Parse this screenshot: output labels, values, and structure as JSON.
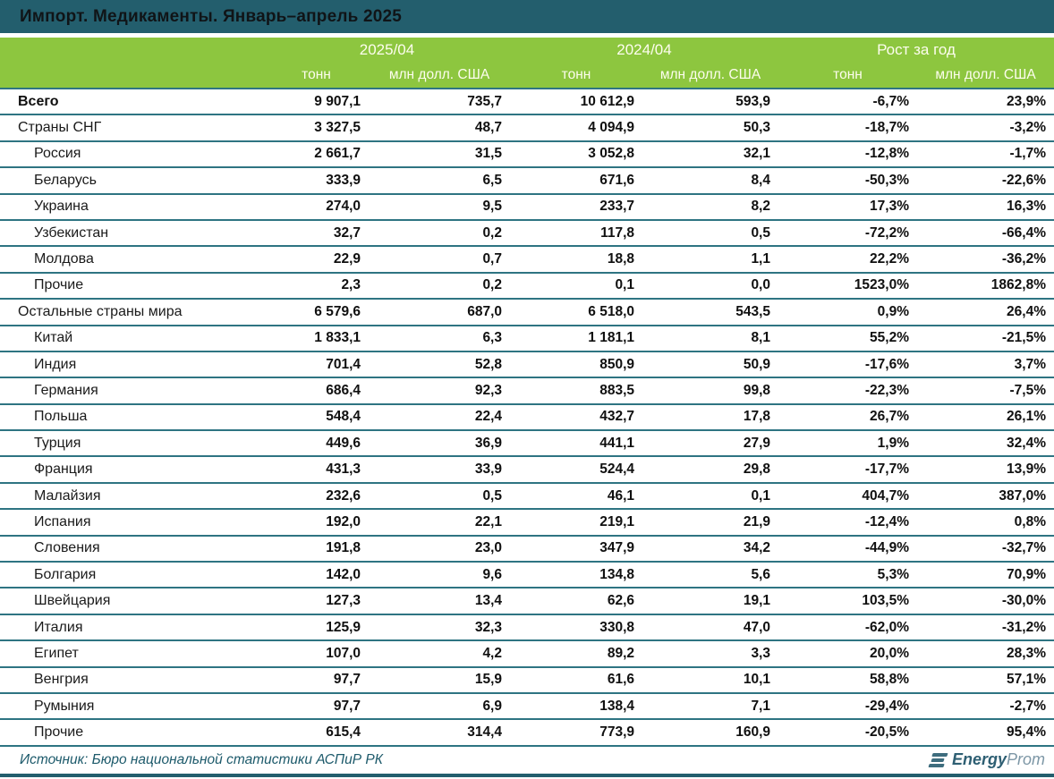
{
  "title": "Импорт. Медикаменты. Январь–апрель 2025",
  "chart_data": {
    "type": "table",
    "title": "Импорт. Медикаменты. Январь–апрель 2025",
    "column_groups": [
      "2025/04",
      "2024/04",
      "Рост за год"
    ],
    "columns": [
      "тонн",
      "млн долл. США",
      "тонн",
      "млн долл. США",
      "тонн",
      "млн долл. США"
    ],
    "rows": [
      {
        "name": "Всего",
        "level": "total",
        "values": [
          "9 907,1",
          "735,7",
          "10 612,9",
          "593,9",
          "-6,7%",
          "23,9%"
        ]
      },
      {
        "name": "Страны СНГ",
        "level": "group",
        "values": [
          "3 327,5",
          "48,7",
          "4 094,9",
          "50,3",
          "-18,7%",
          "-3,2%"
        ]
      },
      {
        "name": "Россия",
        "level": "country",
        "values": [
          "2 661,7",
          "31,5",
          "3 052,8",
          "32,1",
          "-12,8%",
          "-1,7%"
        ]
      },
      {
        "name": "Беларусь",
        "level": "country",
        "values": [
          "333,9",
          "6,5",
          "671,6",
          "8,4",
          "-50,3%",
          "-22,6%"
        ]
      },
      {
        "name": "Украина",
        "level": "country",
        "values": [
          "274,0",
          "9,5",
          "233,7",
          "8,2",
          "17,3%",
          "16,3%"
        ]
      },
      {
        "name": "Узбекистан",
        "level": "country",
        "values": [
          "32,7",
          "0,2",
          "117,8",
          "0,5",
          "-72,2%",
          "-66,4%"
        ]
      },
      {
        "name": "Молдова",
        "level": "country",
        "values": [
          "22,9",
          "0,7",
          "18,8",
          "1,1",
          "22,2%",
          "-36,2%"
        ]
      },
      {
        "name": "Прочие",
        "level": "country",
        "values": [
          "2,3",
          "0,2",
          "0,1",
          "0,0",
          "1523,0%",
          "1862,8%"
        ]
      },
      {
        "name": "Остальные страны мира",
        "level": "group",
        "values": [
          "6 579,6",
          "687,0",
          "6 518,0",
          "543,5",
          "0,9%",
          "26,4%"
        ]
      },
      {
        "name": "Китай",
        "level": "country",
        "values": [
          "1 833,1",
          "6,3",
          "1 181,1",
          "8,1",
          "55,2%",
          "-21,5%"
        ]
      },
      {
        "name": "Индия",
        "level": "country",
        "values": [
          "701,4",
          "52,8",
          "850,9",
          "50,9",
          "-17,6%",
          "3,7%"
        ]
      },
      {
        "name": "Германия",
        "level": "country",
        "values": [
          "686,4",
          "92,3",
          "883,5",
          "99,8",
          "-22,3%",
          "-7,5%"
        ]
      },
      {
        "name": "Польша",
        "level": "country",
        "values": [
          "548,4",
          "22,4",
          "432,7",
          "17,8",
          "26,7%",
          "26,1%"
        ]
      },
      {
        "name": "Турция",
        "level": "country",
        "values": [
          "449,6",
          "36,9",
          "441,1",
          "27,9",
          "1,9%",
          "32,4%"
        ]
      },
      {
        "name": "Франция",
        "level": "country",
        "values": [
          "431,3",
          "33,9",
          "524,4",
          "29,8",
          "-17,7%",
          "13,9%"
        ]
      },
      {
        "name": "Малайзия",
        "level": "country",
        "values": [
          "232,6",
          "0,5",
          "46,1",
          "0,1",
          "404,7%",
          "387,0%"
        ]
      },
      {
        "name": "Испания",
        "level": "country",
        "values": [
          "192,0",
          "22,1",
          "219,1",
          "21,9",
          "-12,4%",
          "0,8%"
        ]
      },
      {
        "name": "Словения",
        "level": "country",
        "values": [
          "191,8",
          "23,0",
          "347,9",
          "34,2",
          "-44,9%",
          "-32,7%"
        ]
      },
      {
        "name": "Болгария",
        "level": "country",
        "values": [
          "142,0",
          "9,6",
          "134,8",
          "5,6",
          "5,3%",
          "70,9%"
        ]
      },
      {
        "name": "Швейцария",
        "level": "country",
        "values": [
          "127,3",
          "13,4",
          "62,6",
          "19,1",
          "103,5%",
          "-30,0%"
        ]
      },
      {
        "name": "Италия",
        "level": "country",
        "values": [
          "125,9",
          "32,3",
          "330,8",
          "47,0",
          "-62,0%",
          "-31,2%"
        ]
      },
      {
        "name": "Египет",
        "level": "country",
        "values": [
          "107,0",
          "4,2",
          "89,2",
          "3,3",
          "20,0%",
          "28,3%"
        ]
      },
      {
        "name": "Венгрия",
        "level": "country",
        "values": [
          "97,7",
          "15,9",
          "61,6",
          "10,1",
          "58,8%",
          "57,1%"
        ]
      },
      {
        "name": "Румыния",
        "level": "country",
        "values": [
          "97,7",
          "6,9",
          "138,4",
          "7,1",
          "-29,4%",
          "-2,7%"
        ]
      },
      {
        "name": "Прочие",
        "level": "country",
        "values": [
          "615,4",
          "314,4",
          "773,9",
          "160,9",
          "-20,5%",
          "95,4%"
        ]
      }
    ]
  },
  "footer": {
    "source": "Источник: Бюро национальной статистики АСПиР РК",
    "logo_bold": "Energy",
    "logo_light": "Prom"
  },
  "colors": {
    "teal": "#235e6d",
    "green": "#8dc63f",
    "row_line": "#2e7482",
    "footer_text": "#1d5a6b",
    "logo_dark": "#2e5f73",
    "logo_light": "#7d97a6"
  }
}
